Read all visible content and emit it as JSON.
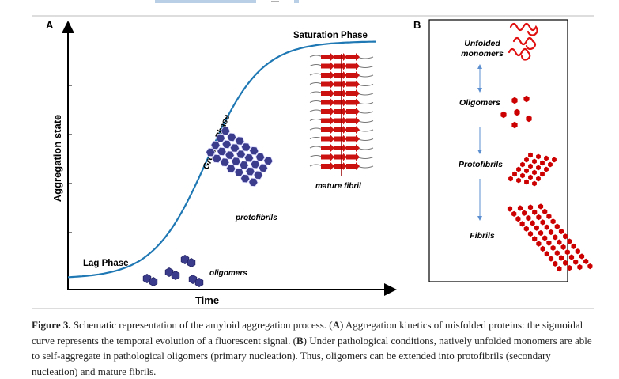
{
  "panel_a": {
    "label": "A",
    "y_axis_label": "Aggregation state",
    "x_axis_label": "Time",
    "phases": {
      "lag": "Lag Phase",
      "growth": "Growth Phase",
      "saturation": "Saturation Phase"
    },
    "annotations": {
      "oligomers": "oligomers",
      "protofibrils": "protofibrils",
      "mature_fibril": "mature fibril"
    },
    "colors": {
      "curve": "#1f78b4",
      "oligomer": "#3c3c8c",
      "fibril": "#cc1111"
    }
  },
  "panel_b": {
    "label": "B",
    "stages": [
      {
        "line1": "Unfolded",
        "line2": "monomers"
      },
      {
        "line1": "Oligomers",
        "line2": ""
      },
      {
        "line1": "Protofibrils",
        "line2": ""
      },
      {
        "line1": "Fibrils",
        "line2": ""
      }
    ],
    "colors": {
      "species": "#cc0000",
      "arrow": "#5b8fd0"
    }
  },
  "caption": {
    "label": "Figure 3.",
    "text_1": " Schematic representation of the amyloid aggregation process. (",
    "ref_a": "A",
    "text_2": ") Aggregation kinetics of misfolded proteins: the sigmoidal curve represents the temporal evolution of a fluorescent signal. (",
    "ref_b": "B",
    "text_3": ") Under pathological conditions, natively unfolded monomers are able to self-aggregate in pathological oligomers (primary nucleation). Thus, oligomers can be extended into protofibrils (secondary nucleation) and mature fibrils."
  }
}
